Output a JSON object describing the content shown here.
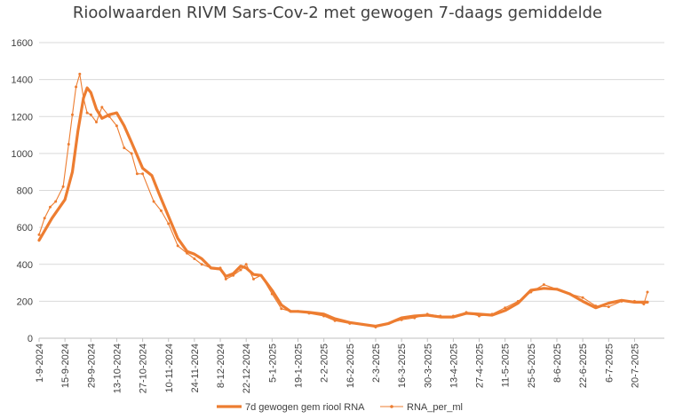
{
  "chart_data": {
    "type": "line",
    "title": "Rioolwaarden RIVM Sars-Cov-2 met gewogen 7-daags gemiddelde",
    "xlabel": "",
    "ylabel": "",
    "ylim": [
      0,
      1600
    ],
    "ytick_labels": [
      "0",
      "200",
      "400",
      "600",
      "800",
      "1000",
      "1200",
      "1400",
      "1600"
    ],
    "grid": "horizontal",
    "legend_position": "bottom",
    "x_tick_labels": [
      "1-9-2024",
      "15-9-2024",
      "29-9-2024",
      "13-10-2024",
      "27-10-2024",
      "10-11-2024",
      "24-11-2024",
      "8-12-2024",
      "22-12-2024",
      "5-1-2025",
      "19-1-2025",
      "2-2-2025",
      "16-2-2025",
      "2-3-2025",
      "16-3-2025",
      "30-3-2025",
      "13-4-2025",
      "27-4-2025",
      "11-5-2025",
      "25-5-2025",
      "8-6-2025",
      "22-6-2025",
      "6-7-2025",
      "20-7-2025"
    ],
    "x_start": "1-9-2024",
    "series": [
      {
        "name": "7d gewogen gem riool RNA",
        "color": "#ed7d31",
        "style": "thick-line",
        "x": [
          "1-9-2024",
          "8-9-2024",
          "15-9-2024",
          "19-9-2024",
          "22-9-2024",
          "25-9-2024",
          "27-9-2024",
          "29-9-2024",
          "2-10-2024",
          "5-10-2024",
          "9-10-2024",
          "13-10-2024",
          "17-10-2024",
          "21-10-2024",
          "27-10-2024",
          "1-11-2024",
          "5-11-2024",
          "10-11-2024",
          "15-11-2024",
          "20-11-2024",
          "24-11-2024",
          "28-11-2024",
          "3-12-2024",
          "8-12-2024",
          "11-12-2024",
          "15-12-2024",
          "19-12-2024",
          "22-12-2024",
          "26-12-2024",
          "30-12-2024",
          "5-1-2025",
          "10-1-2025",
          "15-1-2025",
          "19-1-2025",
          "25-1-2025",
          "2-2-2025",
          "8-2-2025",
          "16-2-2025",
          "23-2-2025",
          "2-3-2025",
          "9-3-2025",
          "16-3-2025",
          "23-3-2025",
          "30-3-2025",
          "6-4-2025",
          "13-4-2025",
          "20-4-2025",
          "27-4-2025",
          "4-5-2025",
          "11-5-2025",
          "18-5-2025",
          "25-5-2025",
          "1-6-2025",
          "8-6-2025",
          "15-6-2025",
          "22-6-2025",
          "29-6-2025",
          "6-7-2025",
          "13-7-2025",
          "20-7-2025",
          "27-7-2025"
        ],
        "values": [
          530,
          650,
          750,
          900,
          1120,
          1300,
          1355,
          1330,
          1240,
          1190,
          1210,
          1220,
          1150,
          1060,
          920,
          880,
          780,
          660,
          540,
          470,
          455,
          430,
          380,
          375,
          335,
          350,
          390,
          380,
          345,
          340,
          260,
          180,
          145,
          145,
          140,
          130,
          105,
          85,
          75,
          65,
          80,
          110,
          120,
          125,
          115,
          115,
          135,
          130,
          125,
          150,
          190,
          260,
          270,
          265,
          240,
          200,
          165,
          190,
          205,
          195,
          195
        ]
      },
      {
        "name": "RNA_per_ml",
        "color": "#ed7d31",
        "style": "thin-line-markers",
        "x": [
          "1-9-2024",
          "4-9-2024",
          "7-9-2024",
          "10-9-2024",
          "14-9-2024",
          "17-9-2024",
          "19-9-2024",
          "21-9-2024",
          "23-9-2024",
          "25-9-2024",
          "27-9-2024",
          "29-9-2024",
          "2-10-2024",
          "5-10-2024",
          "9-10-2024",
          "13-10-2024",
          "17-10-2024",
          "21-10-2024",
          "24-10-2024",
          "27-10-2024",
          "2-11-2024",
          "6-11-2024",
          "10-11-2024",
          "15-11-2024",
          "20-11-2024",
          "24-11-2024",
          "28-11-2024",
          "3-12-2024",
          "8-12-2024",
          "11-12-2024",
          "15-12-2024",
          "19-12-2024",
          "22-12-2024",
          "26-12-2024",
          "30-12-2024",
          "5-1-2025",
          "10-1-2025",
          "15-1-2025",
          "19-1-2025",
          "25-1-2025",
          "2-2-2025",
          "8-2-2025",
          "16-2-2025",
          "23-2-2025",
          "2-3-2025",
          "9-3-2025",
          "16-3-2025",
          "23-3-2025",
          "30-3-2025",
          "6-4-2025",
          "13-4-2025",
          "20-4-2025",
          "27-4-2025",
          "4-5-2025",
          "11-5-2025",
          "18-5-2025",
          "25-5-2025",
          "1-6-2025",
          "8-6-2025",
          "15-6-2025",
          "22-6-2025",
          "29-6-2025",
          "6-7-2025",
          "13-7-2025",
          "20-7-2025",
          "25-7-2025",
          "27-7-2025"
        ],
        "values": [
          560,
          650,
          710,
          740,
          820,
          1050,
          1210,
          1360,
          1430,
          1300,
          1220,
          1210,
          1170,
          1250,
          1200,
          1150,
          1030,
          1000,
          890,
          890,
          740,
          690,
          620,
          500,
          460,
          430,
          400,
          380,
          380,
          320,
          340,
          370,
          400,
          320,
          340,
          240,
          160,
          145,
          145,
          135,
          120,
          95,
          80,
          75,
          60,
          80,
          100,
          110,
          130,
          120,
          120,
          140,
          120,
          130,
          165,
          200,
          250,
          290,
          265,
          240,
          220,
          175,
          170,
          200,
          200,
          185,
          250
        ]
      }
    ]
  }
}
